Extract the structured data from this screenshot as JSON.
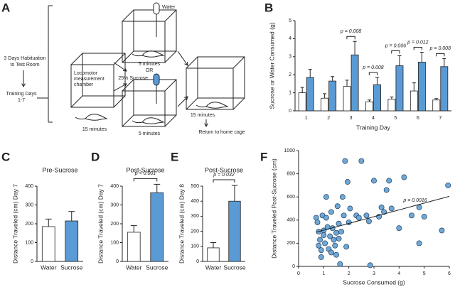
{
  "panels": [
    "A",
    "B",
    "C",
    "D",
    "E",
    "F"
  ],
  "diagram": {
    "habituation": [
      "3 Days Habituation",
      "to Test Room"
    ],
    "training": [
      "Training Days",
      "1-7"
    ],
    "chamber": [
      "Locomotor",
      "measurement",
      "chamber"
    ],
    "chamber_time": "15 minutes",
    "water": "Water",
    "water_time": "5 minutes",
    "or": "OR",
    "sucrose": "25% Sucrose",
    "sucrose_time": "5 minutes",
    "final_time": "15 minutes",
    "return": "Return to home cage"
  },
  "chart_data": [
    {
      "type": "bar",
      "x_label": "Training Day",
      "y_label": "Sucrose or Water Consumed (g)",
      "categories": [
        "1",
        "2",
        "3",
        "4",
        "5",
        "6",
        "7"
      ],
      "series": [
        {
          "color": "#ffffff",
          "values": [
            1.0,
            0.7,
            1.35,
            0.5,
            0.65,
            1.1,
            0.6
          ],
          "errors": [
            0.3,
            0.25,
            0.35,
            0.1,
            0.12,
            0.45,
            0.08
          ]
        },
        {
          "color": "#5b9bd5",
          "values": [
            1.85,
            1.65,
            3.1,
            1.45,
            2.5,
            2.7,
            2.45
          ],
          "errors": [
            0.45,
            0.25,
            0.75,
            0.4,
            0.55,
            0.55,
            0.45
          ]
        }
      ],
      "annotations": [
        {
          "text": "p = 0.008",
          "category": "3"
        },
        {
          "text": "p = 0.008",
          "category": "4"
        },
        {
          "text": "p = 0.006",
          "category": "5"
        },
        {
          "text": "p = 0.012",
          "category": "6"
        },
        {
          "text": "p = 0.008",
          "category": "7"
        }
      ],
      "ylim": [
        0,
        5
      ],
      "yticks": [
        0,
        1,
        2,
        3,
        4,
        5
      ]
    },
    {
      "type": "bar",
      "title": "Pre-Sucrose",
      "y_label": "Distance Traveled (cm) Day 7",
      "categories": [
        "Water",
        "Sucrose"
      ],
      "values": [
        185,
        215
      ],
      "errors": [
        40,
        50
      ],
      "colors": [
        "#ffffff",
        "#5b9bd5"
      ],
      "ylim": [
        0,
        400
      ],
      "yticks": [
        0,
        100,
        200,
        300,
        400
      ]
    },
    {
      "type": "bar",
      "title": "Post-Sucrose",
      "y_label": "Distance Traveled (cm) Day 7",
      "categories": [
        "Water",
        "Sucrose"
      ],
      "values": [
        155,
        365
      ],
      "errors": [
        35,
        45
      ],
      "colors": [
        "#ffffff",
        "#5b9bd5"
      ],
      "annotations": [
        {
          "text": "p < 0.001"
        }
      ],
      "ylim": [
        0,
        400
      ],
      "yticks": [
        0,
        100,
        200,
        300,
        400
      ]
    },
    {
      "type": "bar",
      "title": "Post-Sucrose",
      "y_label": "Distance Traveled (cm) Day 8",
      "categories": [
        "Water",
        "Sucrose"
      ],
      "values": [
        90,
        400
      ],
      "errors": [
        35,
        105
      ],
      "colors": [
        "#ffffff",
        "#5b9bd5"
      ],
      "annotations": [
        {
          "text": "p = 0.032"
        }
      ],
      "ylim": [
        0,
        500
      ],
      "yticks": [
        0,
        100,
        200,
        300,
        400,
        500
      ]
    },
    {
      "type": "scatter",
      "x_label": "Sucrose Consumed (g)",
      "y_label": "Distance Traveled Post-Sucrose (cm)",
      "color": "#6fa8d6",
      "x": [
        0.7,
        0.75,
        0.8,
        0.8,
        0.85,
        0.9,
        0.9,
        0.95,
        1.0,
        1.0,
        1.05,
        1.1,
        1.1,
        1.15,
        1.2,
        1.25,
        1.3,
        1.3,
        1.35,
        1.4,
        1.45,
        1.5,
        1.5,
        1.55,
        1.6,
        1.6,
        1.65,
        1.7,
        1.75,
        1.8,
        1.85,
        1.9,
        1.95,
        2.0,
        2.05,
        2.3,
        2.4,
        2.5,
        2.7,
        2.8,
        2.85,
        3.0,
        3.2,
        3.3,
        3.4,
        3.5,
        3.6,
        3.7,
        4.0,
        4.2,
        4.5,
        4.8,
        4.8,
        5.0,
        5.7,
        5.95
      ],
      "y": [
        420,
        380,
        300,
        180,
        230,
        140,
        80,
        440,
        310,
        270,
        200,
        600,
        420,
        340,
        150,
        260,
        470,
        120,
        330,
        230,
        180,
        290,
        100,
        520,
        370,
        240,
        20,
        300,
        600,
        440,
        910,
        170,
        730,
        380,
        500,
        440,
        420,
        910,
        440,
        390,
        10,
        740,
        430,
        510,
        470,
        660,
        740,
        500,
        330,
        770,
        440,
        200,
        510,
        430,
        310,
        700
      ],
      "trendline": {
        "x": [
          0.7,
          6
        ],
        "y": [
          295,
          605
        ]
      },
      "annotations": [
        {
          "text": "p = 0.0016"
        }
      ],
      "xlim": [
        0,
        6
      ],
      "xticks": [
        0,
        1,
        2,
        3,
        4,
        5,
        6
      ],
      "ylim": [
        0,
        1000
      ],
      "yticks": [
        0,
        200,
        400,
        600,
        800,
        1000
      ]
    }
  ]
}
